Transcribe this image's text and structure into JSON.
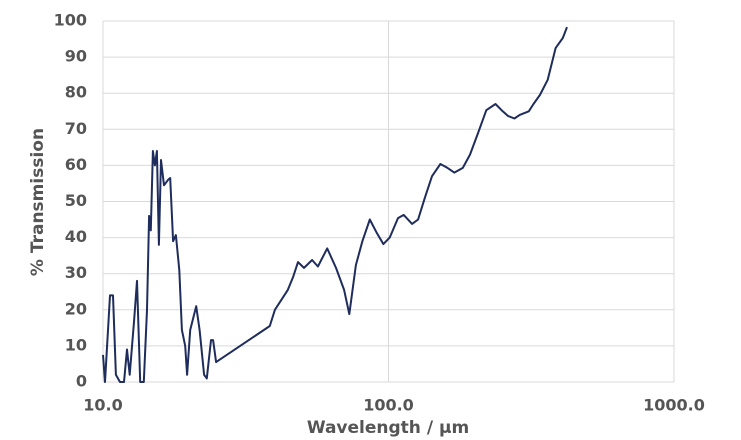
{
  "chart_data": {
    "type": "line",
    "x_label": "Wavelength / µm",
    "y_label": "% Transmission",
    "xscale": "log",
    "grid": true,
    "color": "#1f2d5c",
    "xlim": [
      10,
      1000
    ],
    "ylim": [
      0,
      100
    ],
    "xticks": [
      {
        "value": 10,
        "label": "10.0"
      },
      {
        "value": 100,
        "label": "100.0"
      },
      {
        "value": 1000,
        "label": "1000.0"
      }
    ],
    "yticks": [
      0,
      10,
      20,
      30,
      40,
      50,
      60,
      70,
      80,
      90,
      100
    ],
    "x": [
      10,
      10.16,
      10.58,
      10.84,
      11.1,
      11.47,
      11.85,
      12.14,
      12.4,
      12.85,
      13.15,
      13.5,
      13.9,
      14.26,
      14.5,
      14.7,
      14.96,
      15.2,
      15.45,
      15.7,
      15.97,
      16.35,
      16.9,
      17.2,
      17.6,
      18.0,
      18.5,
      18.9,
      19.4,
      19.7,
      20.2,
      21.2,
      21.8,
      22.6,
      23.1,
      23.9,
      24.3,
      24.9,
      38.4,
      40.0,
      44.4,
      46.3,
      48.2,
      50.6,
      54.0,
      56.6,
      61,
      65.5,
      69.9,
      72.9,
      76.9,
      81,
      86,
      90.7,
      96,
      101,
      108,
      113,
      121,
      127,
      134,
      142,
      152,
      161,
      170,
      182,
      193,
      206,
      220,
      237,
      249,
      262,
      276,
      288,
      310,
      322,
      339,
      361,
      385,
      408,
      422
    ],
    "values": [
      7.5,
      0,
      24,
      24,
      2,
      0,
      0,
      9,
      2,
      17,
      28,
      0,
      0,
      20,
      46,
      42,
      64,
      60,
      64,
      38,
      61.5,
      54.5,
      56,
      56.5,
      39,
      40.7,
      31,
      14.4,
      10,
      2,
      14.4,
      21,
      14.4,
      2,
      1,
      11.6,
      11.6,
      5.5,
      15.5,
      20,
      25.5,
      29,
      33.2,
      31.6,
      33.8,
      32,
      37,
      31.6,
      25.5,
      18.8,
      32.4,
      39,
      45,
      41.5,
      38.2,
      40,
      45.4,
      46.3,
      43.8,
      45,
      51,
      57,
      60.4,
      59.3,
      58,
      59.3,
      63,
      69,
      75.3,
      77,
      75.3,
      73.7,
      73,
      74,
      75,
      77,
      79.5,
      83.7,
      92.5,
      95.3,
      98.3
    ]
  }
}
